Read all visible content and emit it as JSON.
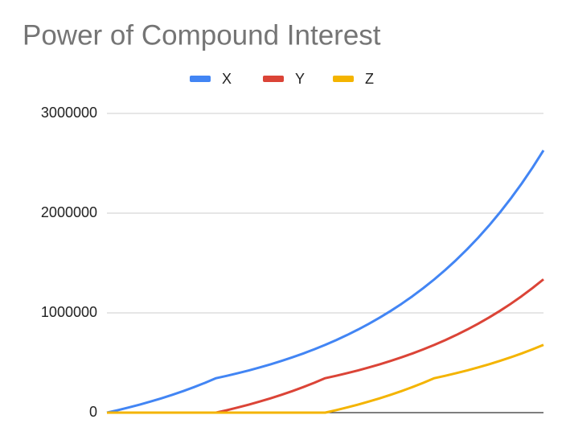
{
  "chart_data": {
    "type": "line",
    "title": "Power of Compound Interest",
    "categories": [
      null,
      null,
      null,
      null,
      null,
      null,
      null,
      null,
      null,
      null,
      null,
      null,
      null,
      null,
      null,
      null,
      null,
      null,
      null,
      null,
      null,
      null,
      null,
      null,
      null,
      null,
      null,
      null,
      null,
      null,
      null,
      null,
      null,
      null,
      null,
      null,
      null,
      null,
      null,
      null,
      null
    ],
    "series": [
      {
        "name": "X",
        "color": "#4285f4",
        "values": [
          0,
          25000,
          51750,
          80373,
          110998,
          143768,
          178833,
          216350,
          256495,
          299450,
          345411,
          369590,
          395461,
          423144,
          452763,
          484456,
          518369,
          554655,
          593481,
          635024,
          679476,
          727039,
          777932,
          832387,
          890654,
          953000,
          1019710,
          1091089,
          1167466,
          1249189,
          1336632,
          1430196,
          1530310,
          1637431,
          1752051,
          1874695,
          2005924,
          2146338,
          2296577,
          2457343,
          2629356
        ]
      },
      {
        "name": "Y",
        "color": "#db4437",
        "values": [
          0,
          0,
          0,
          0,
          0,
          0,
          0,
          0,
          0,
          0,
          0,
          25000,
          51750,
          80373,
          110998,
          143768,
          178833,
          216350,
          256495,
          299450,
          345411,
          369590,
          395461,
          423144,
          452763,
          484456,
          518369,
          554655,
          593481,
          635024,
          679476,
          727039,
          777932,
          832387,
          890654,
          953000,
          1019710,
          1091089,
          1167466,
          1249189,
          1336632
        ]
      },
      {
        "name": "Z",
        "color": "#f4b400",
        "values": [
          0,
          0,
          0,
          0,
          0,
          0,
          0,
          0,
          0,
          0,
          0,
          0,
          0,
          0,
          0,
          0,
          0,
          0,
          0,
          0,
          0,
          25000,
          51750,
          80373,
          110998,
          143768,
          178833,
          216350,
          256495,
          299450,
          345411,
          369590,
          395461,
          423144,
          452763,
          484456,
          518369,
          554655,
          593481,
          635024,
          679476
        ]
      }
    ],
    "ylim": [
      0,
      3000000
    ],
    "yticks": [
      0,
      1000000,
      2000000,
      3000000
    ],
    "grid": true,
    "legend": "top"
  }
}
